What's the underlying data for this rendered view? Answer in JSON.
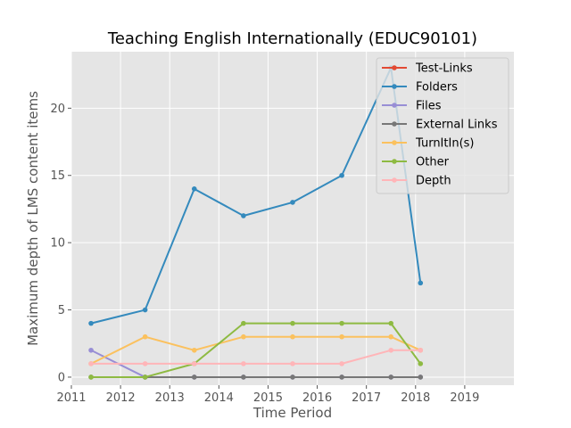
{
  "chart_data": {
    "type": "line",
    "title": "Teaching English Internationally (EDUC90101)",
    "xlabel": "Time Period",
    "ylabel": "Maximum depth of LMS content items",
    "xlim": [
      2011,
      2020
    ],
    "ylim": [
      -0.6,
      24.2
    ],
    "xticks": [
      "2011",
      "2012",
      "2013",
      "2014",
      "2015",
      "2016",
      "2017",
      "2018",
      "2019"
    ],
    "xtick_values": [
      2011,
      2012,
      2013,
      2014,
      2015,
      2016,
      2017,
      2018,
      2019
    ],
    "yticks": [
      "0",
      "5",
      "10",
      "15",
      "20"
    ],
    "ytick_values": [
      0,
      5,
      10,
      15,
      20
    ],
    "grid": true,
    "legend_position": "top-right",
    "x": [
      2011.4,
      2012.5,
      2013.5,
      2014.5,
      2015.5,
      2016.5,
      2017.5,
      2018.1
    ],
    "series": [
      {
        "name": "Test-Links",
        "color": "#E24A33",
        "values": [
          null,
          null,
          null,
          null,
          null,
          null,
          null,
          null
        ]
      },
      {
        "name": "Folders",
        "color": "#348ABD",
        "values": [
          4,
          5,
          14,
          12,
          13,
          15,
          23,
          7
        ]
      },
      {
        "name": "Files",
        "color": "#988ED5",
        "values": [
          2,
          0,
          0,
          0,
          0,
          0,
          0,
          0
        ]
      },
      {
        "name": "External Links",
        "color": "#777777",
        "values": [
          0,
          0,
          0,
          0,
          0,
          0,
          0,
          0
        ]
      },
      {
        "name": "TurnItIn(s)",
        "color": "#FBC15E",
        "values": [
          1,
          3,
          2,
          3,
          3,
          3,
          3,
          2
        ]
      },
      {
        "name": "Other",
        "color": "#8EBA42",
        "values": [
          0,
          0,
          1,
          4,
          4,
          4,
          4,
          1
        ]
      },
      {
        "name": "Depth",
        "color": "#FFB5B8",
        "values": [
          1,
          1,
          1,
          1,
          1,
          1,
          2,
          2
        ]
      }
    ]
  }
}
